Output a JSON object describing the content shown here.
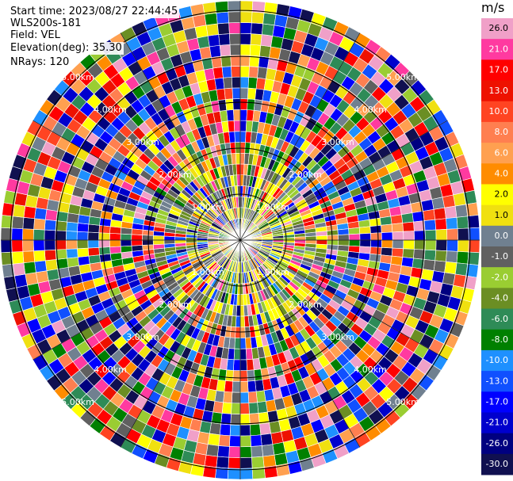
{
  "chart_data": {
    "type": "polar-ppi",
    "info": {
      "start_time": "Start time: 2023/08/27 22:44:45",
      "instrument": "WLS200s-181",
      "field": "Field: VEL",
      "elevation": "Elevation(deg): 35.30",
      "nrays": "NRays: 120"
    },
    "n_rays": 120,
    "range_rings_km": [
      1,
      2,
      3,
      4,
      5
    ],
    "range_ring_labels": [
      "1.00km",
      "2.00km",
      "3.00km",
      "4.00km",
      "5.00km"
    ],
    "max_range_km": 5.0,
    "colorbar": {
      "unit": "m/s",
      "tick_labels": [
        "26.0",
        "21.0",
        "17.0",
        "13.0",
        "10.0",
        "8.0",
        "6.0",
        "4.0",
        "2.0",
        "1.0",
        "0.0",
        "-1.0",
        "-2.0",
        "-4.0",
        "-6.0",
        "-8.0",
        "-10.0",
        "-13.0",
        "-17.0",
        "-21.0",
        "-26.0",
        "-30.0"
      ],
      "colors": [
        "#f0a0c8",
        "#ff3aa0",
        "#ff0000",
        "#ee1100",
        "#ff4422",
        "#ff7f50",
        "#ffa050",
        "#ff8c00",
        "#ffff00",
        "#f0e010",
        "#708090",
        "#606060",
        "#9acd32",
        "#6b8e23",
        "#2e8b57",
        "#008000",
        "#1e90ff",
        "#1050ff",
        "#0000ff",
        "#0000cd",
        "#000080",
        "#101050"
      ]
    }
  }
}
